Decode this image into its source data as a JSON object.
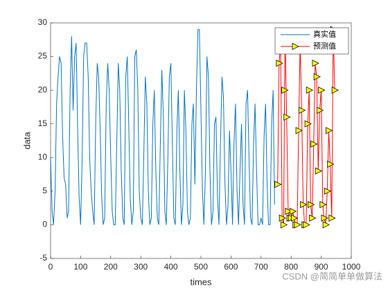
{
  "chart_data": {
    "type": "line",
    "xlabel": "times",
    "ylabel": "data",
    "xlim": [
      0,
      1000
    ],
    "xticks": [
      0,
      100,
      200,
      300,
      400,
      500,
      600,
      700,
      800,
      900,
      1000
    ],
    "ylim": [
      -5,
      30
    ],
    "yticks": [
      -5,
      0,
      5,
      10,
      15,
      20,
      25,
      30
    ],
    "legend": "northeast",
    "grid": false,
    "watermark": "CSDN @简简单单做算法",
    "series": [
      {
        "name": "真实值",
        "color": "#0072bd",
        "x": [
          0,
          5,
          10,
          15,
          20,
          25,
          30,
          35,
          40,
          45,
          50,
          55,
          60,
          65,
          70,
          75,
          80,
          85,
          90,
          95,
          100,
          105,
          110,
          115,
          120,
          125,
          130,
          135,
          140,
          145,
          150,
          155,
          160,
          165,
          170,
          175,
          180,
          185,
          190,
          195,
          200,
          205,
          210,
          215,
          220,
          225,
          230,
          235,
          240,
          245,
          250,
          255,
          260,
          265,
          270,
          275,
          280,
          285,
          290,
          295,
          300,
          305,
          310,
          315,
          320,
          325,
          330,
          335,
          340,
          345,
          350,
          355,
          360,
          365,
          370,
          375,
          380,
          385,
          390,
          395,
          400,
          405,
          410,
          415,
          420,
          425,
          430,
          435,
          440,
          445,
          450,
          455,
          460,
          465,
          470,
          475,
          480,
          485,
          490,
          495,
          500,
          505,
          510,
          515,
          520,
          525,
          530,
          535,
          540,
          545,
          550,
          555,
          560,
          565,
          570,
          575,
          580,
          585,
          590,
          595,
          600,
          605,
          610,
          615,
          620,
          625,
          630,
          635,
          640,
          645,
          650,
          655,
          660,
          665,
          670,
          675,
          680,
          685,
          690,
          695,
          700,
          705,
          710,
          715,
          720,
          725,
          730,
          735,
          740,
          745
        ],
        "values": [
          10,
          2,
          0,
          5,
          18,
          22,
          25,
          24,
          13,
          7,
          6,
          1,
          2,
          20,
          28,
          17,
          25,
          27,
          14,
          4,
          0,
          10,
          25,
          27,
          27,
          22,
          10,
          5,
          2,
          0,
          15,
          24,
          22,
          14,
          4,
          0,
          1,
          18,
          24,
          20,
          10,
          2,
          0,
          0,
          12,
          24,
          20,
          8,
          1,
          0,
          22,
          25,
          15,
          4,
          0,
          2,
          25,
          26,
          20,
          5,
          1,
          0,
          10,
          22,
          18,
          5,
          0,
          1,
          15,
          20,
          8,
          1,
          0,
          12,
          23,
          16,
          2,
          0,
          10,
          22,
          24,
          12,
          1,
          0,
          14,
          20,
          8,
          0,
          3,
          20,
          14,
          2,
          0,
          1,
          15,
          18,
          6,
          20,
          29,
          29,
          17,
          5,
          0,
          8,
          25,
          22,
          8,
          0,
          2,
          15,
          16,
          4,
          0,
          12,
          22,
          19,
          6,
          0,
          3,
          14,
          8,
          0,
          12,
          18,
          5,
          0,
          8,
          15,
          3,
          0,
          18,
          20,
          10,
          1,
          0,
          12,
          18,
          8,
          0,
          0,
          1,
          0,
          13,
          18,
          6,
          0,
          0,
          15,
          20,
          3
        ]
      },
      {
        "name": "预测值",
        "color": "#ff0000",
        "marker": "triangle-right",
        "marker_color": "#ffff00",
        "x": [
          755,
          760,
          765,
          770,
          775,
          778,
          780,
          785,
          790,
          795,
          800,
          805,
          810,
          815,
          820,
          825,
          830,
          835,
          840,
          845,
          850,
          855,
          860,
          865,
          870,
          875,
          880,
          885,
          890,
          895,
          900,
          905,
          910,
          915,
          920,
          925,
          930,
          935,
          940,
          945
        ],
        "values": [
          6,
          24,
          27,
          1,
          0,
          20,
          28,
          16,
          2,
          1,
          1,
          2,
          1,
          0,
          0,
          14,
          27,
          17,
          3,
          0,
          0,
          15,
          20,
          3,
          1,
          12,
          24,
          22,
          8,
          17,
          20,
          3,
          1,
          0,
          5,
          14,
          9,
          1,
          29,
          20
        ]
      }
    ]
  }
}
